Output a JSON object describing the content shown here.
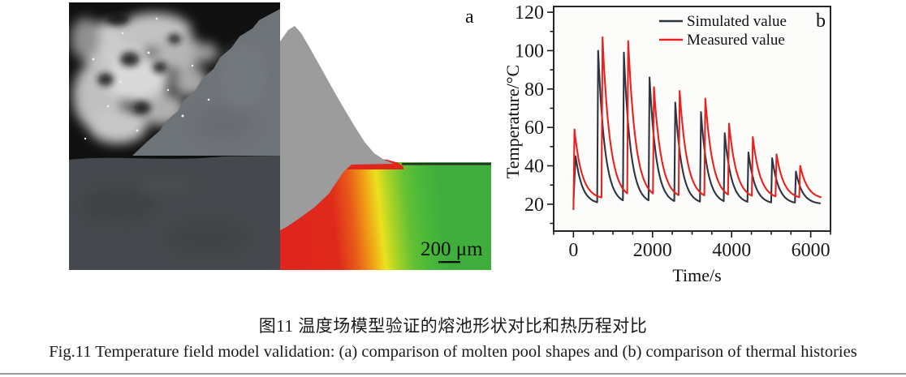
{
  "captions": {
    "chinese": "图11  温度场模型验证的熔池形状对比和热历程对比",
    "english": "Fig.11  Temperature field model validation: (a) comparison of molten pool shapes and (b) comparison of thermal histories"
  },
  "panel_a": {
    "label": "a",
    "scale_bar_label": "200 μm",
    "colors": {
      "melt_hot_red": "#e0251c",
      "warm_orange": "#f0a215",
      "isotherm_yellow": "#ece11e",
      "cool_green": "#3fae3c",
      "simulated_bead_gray": "#9c9c9c",
      "micrograph_bead_gray": "#6e7378",
      "substrate_gray": "#45484c",
      "micrograph_background": "#101010",
      "dendrite_bright": "#d9d9d9"
    }
  },
  "chart_data": {
    "type": "line",
    "panel_label": "b",
    "title": "",
    "xlabel": "Time/s",
    "ylabel": "Temperature/°C",
    "xlim": [
      -500,
      6500
    ],
    "ylim": [
      6,
      123
    ],
    "x_major_ticks": [
      0,
      2000,
      4000,
      6000
    ],
    "x_minor_step": 500,
    "y_major_ticks": [
      20,
      40,
      60,
      80,
      100,
      120
    ],
    "y_minor_step": 10,
    "grid": false,
    "legend_position": "top-right-inside",
    "axis_color": "#1a1a1a",
    "series": [
      {
        "name": "Simulated value",
        "color": "#2c3540",
        "start": [
          0,
          22
        ],
        "base_temp": 20,
        "decay_tau_s": 170,
        "rise_s": 25,
        "end_s": 6250,
        "peaks": [
          {
            "t": 30,
            "temp": 45
          },
          {
            "t": 600,
            "temp": 100
          },
          {
            "t": 1250,
            "temp": 99
          },
          {
            "t": 1900,
            "temp": 86
          },
          {
            "t": 2550,
            "temp": 73
          },
          {
            "t": 3200,
            "temp": 68
          },
          {
            "t": 3800,
            "temp": 57
          },
          {
            "t": 4400,
            "temp": 47
          },
          {
            "t": 5000,
            "temp": 44
          },
          {
            "t": 5600,
            "temp": 37
          }
        ]
      },
      {
        "name": "Measured value",
        "color": "#e8221f",
        "start": [
          0,
          17
        ],
        "base_temp": 22.5,
        "decay_tau_s": 190,
        "rise_s": 25,
        "end_s": 6270,
        "peaks": [
          {
            "t": 0,
            "temp": 59
          },
          {
            "t": 710,
            "temp": 107
          },
          {
            "t": 1360,
            "temp": 105
          },
          {
            "t": 2010,
            "temp": 81
          },
          {
            "t": 2660,
            "temp": 79
          },
          {
            "t": 3310,
            "temp": 75
          },
          {
            "t": 3910,
            "temp": 62
          },
          {
            "t": 4510,
            "temp": 55
          },
          {
            "t": 5110,
            "temp": 46
          },
          {
            "t": 5710,
            "temp": 40
          }
        ]
      }
    ]
  }
}
